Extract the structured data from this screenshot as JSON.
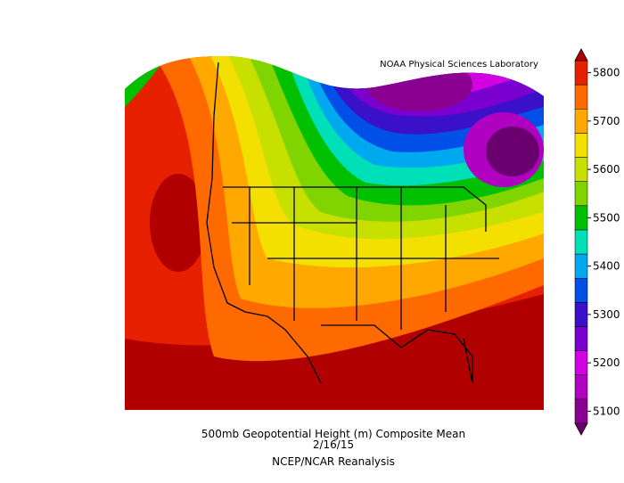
{
  "header": {
    "title": "NOAA Physical Sciences Laboratory"
  },
  "footer": {
    "title": "500mb Geopotential Height (m) Composite Mean",
    "date": "2/16/15",
    "source": "NCEP/NCAR Reanalysis"
  },
  "colorbar": {
    "ticks": [
      5100,
      5200,
      5300,
      5400,
      5500,
      5600,
      5700,
      5800
    ],
    "colors": [
      "#6a0070",
      "#8a0090",
      "#b000c0",
      "#d000e0",
      "#7a00d0",
      "#3a10c8",
      "#0050e8",
      "#00a8f0",
      "#00e0b8",
      "#00c000",
      "#80d400",
      "#c8e000",
      "#f4e000",
      "#ffa800",
      "#ff6a00",
      "#e62000",
      "#b00000"
    ]
  }
}
